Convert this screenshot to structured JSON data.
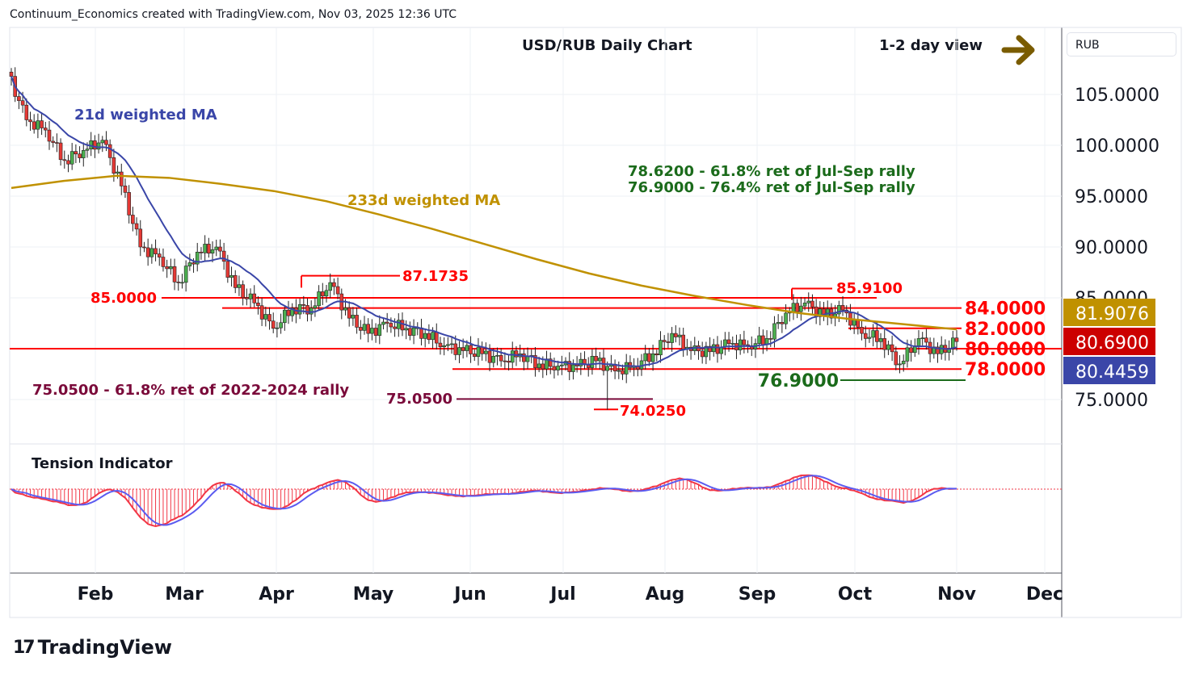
{
  "header": {
    "attribution": "Continuum_Economics created with TradingView.com, Nov 03, 2025 12:36 UTC"
  },
  "chart_title": "USD/RUB Daily Chart",
  "view_label": "1-2 day view",
  "view_arrow_icon": "right-arrow-icon",
  "currency_label": "RUB",
  "brand": "TradingView",
  "colors": {
    "up": "#089981",
    "down": "#f23645",
    "wma21": "#3a46a8",
    "wma233": "#c09100",
    "level": "#ff0000",
    "green_level": "#1b6b1b",
    "retrace": "#7a0a3a"
  },
  "chart_data": {
    "type": "candlestick",
    "title": "USD/RUB Daily Chart",
    "ylim": [
      72,
      108.5
    ],
    "yticks": [
      "105.0000",
      "100.0000",
      "95.0000",
      "90.0000",
      "85.0000",
      "75.0000"
    ],
    "yticks_values": [
      105,
      100,
      95,
      90,
      85,
      75
    ],
    "xticks": [
      "Feb",
      "Mar",
      "Apr",
      "May",
      "Jun",
      "Jul",
      "Aug",
      "Sep",
      "Oct",
      "Nov",
      "Dec"
    ],
    "weekly_closes": [
      102.5,
      101.5,
      98.5,
      99.5,
      100.5,
      96,
      90,
      89,
      86.5,
      89.5,
      90,
      86,
      84.5,
      82,
      84,
      84,
      86.5,
      83,
      81.5,
      82.5,
      82,
      81.5,
      80.3,
      79.8,
      79.5,
      78.8,
      79.5,
      78.5,
      78.3,
      78.3,
      78.8,
      77.8,
      78.3,
      79.5,
      81.5,
      79.8,
      79.7,
      80.5,
      80.3,
      81,
      83.5,
      84.5,
      83.2,
      83.8,
      81.5,
      81,
      78.5,
      81,
      79.5,
      80.7
    ],
    "start_price": 107.2,
    "wma233_points": [
      95.8,
      96.5,
      97,
      96.8,
      96.2,
      95.5,
      94.5,
      93.2,
      91.8,
      90.3,
      88.8,
      87.4,
      86.2,
      85.2,
      84.3,
      83.5,
      82.9,
      82.4,
      81.9
    ],
    "series_labels": {
      "wma21": "21d weighted MA",
      "wma233": "233d weighted MA"
    },
    "last_values": {
      "wma233": "81.9076",
      "close": "80.6900",
      "wma21": "80.4459"
    },
    "levels": [
      {
        "label": "84.0000",
        "value": 84
      },
      {
        "label": "82.0000",
        "value": 82
      },
      {
        "label": "80.0000",
        "value": 80
      },
      {
        "label": "78.0000",
        "value": 78
      }
    ],
    "annotations": {
      "high1": "87.1735",
      "high2": "85.9100",
      "level85": "85.0000",
      "low1": "74.0250",
      "fib_2022": "75.0500",
      "fib_green": "76.9000",
      "fib_text_1": "78.6200 - 61.8% ret of Jul-Sep rally",
      "fib_text_2": "76.9000 - 76.4% ret of Jul-Sep rally",
      "fib_text_3": "75.0500 - 61.8% ret of 2022-2024 rally"
    },
    "indicator": {
      "title": "Tension Indicator"
    }
  }
}
